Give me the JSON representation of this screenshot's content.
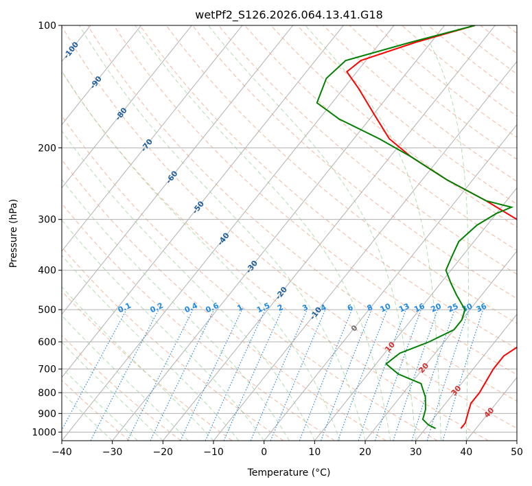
{
  "chart_data": {
    "type": "line",
    "subtype": "skew-t log-p diagram",
    "title": "wetPf2_S126.2026.064.13.41.G18",
    "xlabel": "Temperature (°C)",
    "ylabel": "Pressure (hPa)",
    "xlim": [
      -40,
      50
    ],
    "ylim": [
      1050,
      100
    ],
    "y_scale": "log",
    "grid": true,
    "x_ticks": [
      -40,
      -30,
      -20,
      -10,
      0,
      10,
      20,
      30,
      40,
      50
    ],
    "y_ticks": [
      1000,
      900,
      800,
      700,
      600,
      500,
      400,
      300,
      200,
      100
    ],
    "background_lines": {
      "isotherms_color": "#b0b0b0",
      "dry_adiabats_color": "#f4a582",
      "moist_adiabats_color": "#8fd08f",
      "mixing_ratio_color": "#1e88e5",
      "isotherm_labels": [
        {
          "text": "-100",
          "t": -100,
          "p": 115
        },
        {
          "text": "-90",
          "t": -90,
          "p": 138
        },
        {
          "text": "-80",
          "t": -80,
          "p": 165
        },
        {
          "text": "-70",
          "t": -70,
          "p": 197
        },
        {
          "text": "-60",
          "t": -60,
          "p": 236
        },
        {
          "text": "-50",
          "t": -50,
          "p": 280
        },
        {
          "text": "-40",
          "t": -40,
          "p": 335
        },
        {
          "text": "-30",
          "t": -30,
          "p": 392
        },
        {
          "text": "-20",
          "t": -20,
          "p": 455
        },
        {
          "text": "-10",
          "t": -10,
          "p": 510
        }
      ],
      "dry_adiabat_labels": [
        {
          "text": "0",
          "t": 0,
          "p": 555
        },
        {
          "text": "10",
          "t": 10,
          "p": 617
        },
        {
          "text": "20",
          "t": 20,
          "p": 695
        },
        {
          "text": "30",
          "t": 30,
          "p": 790
        },
        {
          "text": "40",
          "t": 40,
          "p": 895
        }
      ],
      "mixing_ratio_labels": [
        "0.1",
        "0.2",
        "0.4",
        "0.6",
        "1",
        "1.5",
        "2",
        "3",
        "4",
        "6",
        "8",
        "10",
        "13",
        "16",
        "20",
        "25",
        "30",
        "36"
      ]
    },
    "series": [
      {
        "color": "#ff0000",
        "points": [
          [
            -66,
            100
          ],
          [
            -75,
            110
          ],
          [
            -83,
            122
          ],
          [
            -84,
            130
          ],
          [
            -79,
            143
          ],
          [
            -72,
            165
          ],
          [
            -65,
            190
          ],
          [
            -58,
            210
          ],
          [
            -47,
            240
          ],
          [
            -36,
            270
          ],
          [
            -27,
            300
          ],
          [
            -19,
            330
          ],
          [
            -10,
            360
          ],
          [
            -3,
            380
          ],
          [
            1,
            400
          ],
          [
            3,
            430
          ],
          [
            4,
            455
          ],
          [
            4,
            470
          ],
          [
            3,
            490
          ],
          [
            0,
            510
          ],
          [
            -4,
            560
          ],
          [
            -6,
            600
          ],
          [
            -8,
            650
          ],
          [
            -8,
            700
          ],
          [
            -7,
            800
          ],
          [
            -7,
            850
          ],
          [
            -6,
            900
          ],
          [
            -5,
            950
          ],
          [
            -5,
            980
          ]
        ]
      },
      {
        "color": "#008000",
        "points": [
          [
            -66,
            100
          ],
          [
            -76,
            110
          ],
          [
            -86,
            122
          ],
          [
            -87,
            135
          ],
          [
            -85,
            155
          ],
          [
            -78,
            170
          ],
          [
            -67,
            190
          ],
          [
            -58,
            210
          ],
          [
            -47,
            240
          ],
          [
            -36,
            270
          ],
          [
            -30,
            280
          ],
          [
            -32,
            290
          ],
          [
            -34,
            310
          ],
          [
            -35,
            340
          ],
          [
            -34,
            370
          ],
          [
            -33,
            400
          ],
          [
            -30,
            430
          ],
          [
            -27,
            460
          ],
          [
            -23,
            500
          ],
          [
            -22,
            530
          ],
          [
            -22,
            560
          ],
          [
            -25,
            600
          ],
          [
            -29,
            640
          ],
          [
            -30,
            680
          ],
          [
            -26,
            720
          ],
          [
            -20,
            760
          ],
          [
            -17,
            820
          ],
          [
            -15,
            880
          ],
          [
            -14,
            930
          ],
          [
            -12,
            960
          ],
          [
            -10,
            980
          ]
        ]
      }
    ]
  }
}
